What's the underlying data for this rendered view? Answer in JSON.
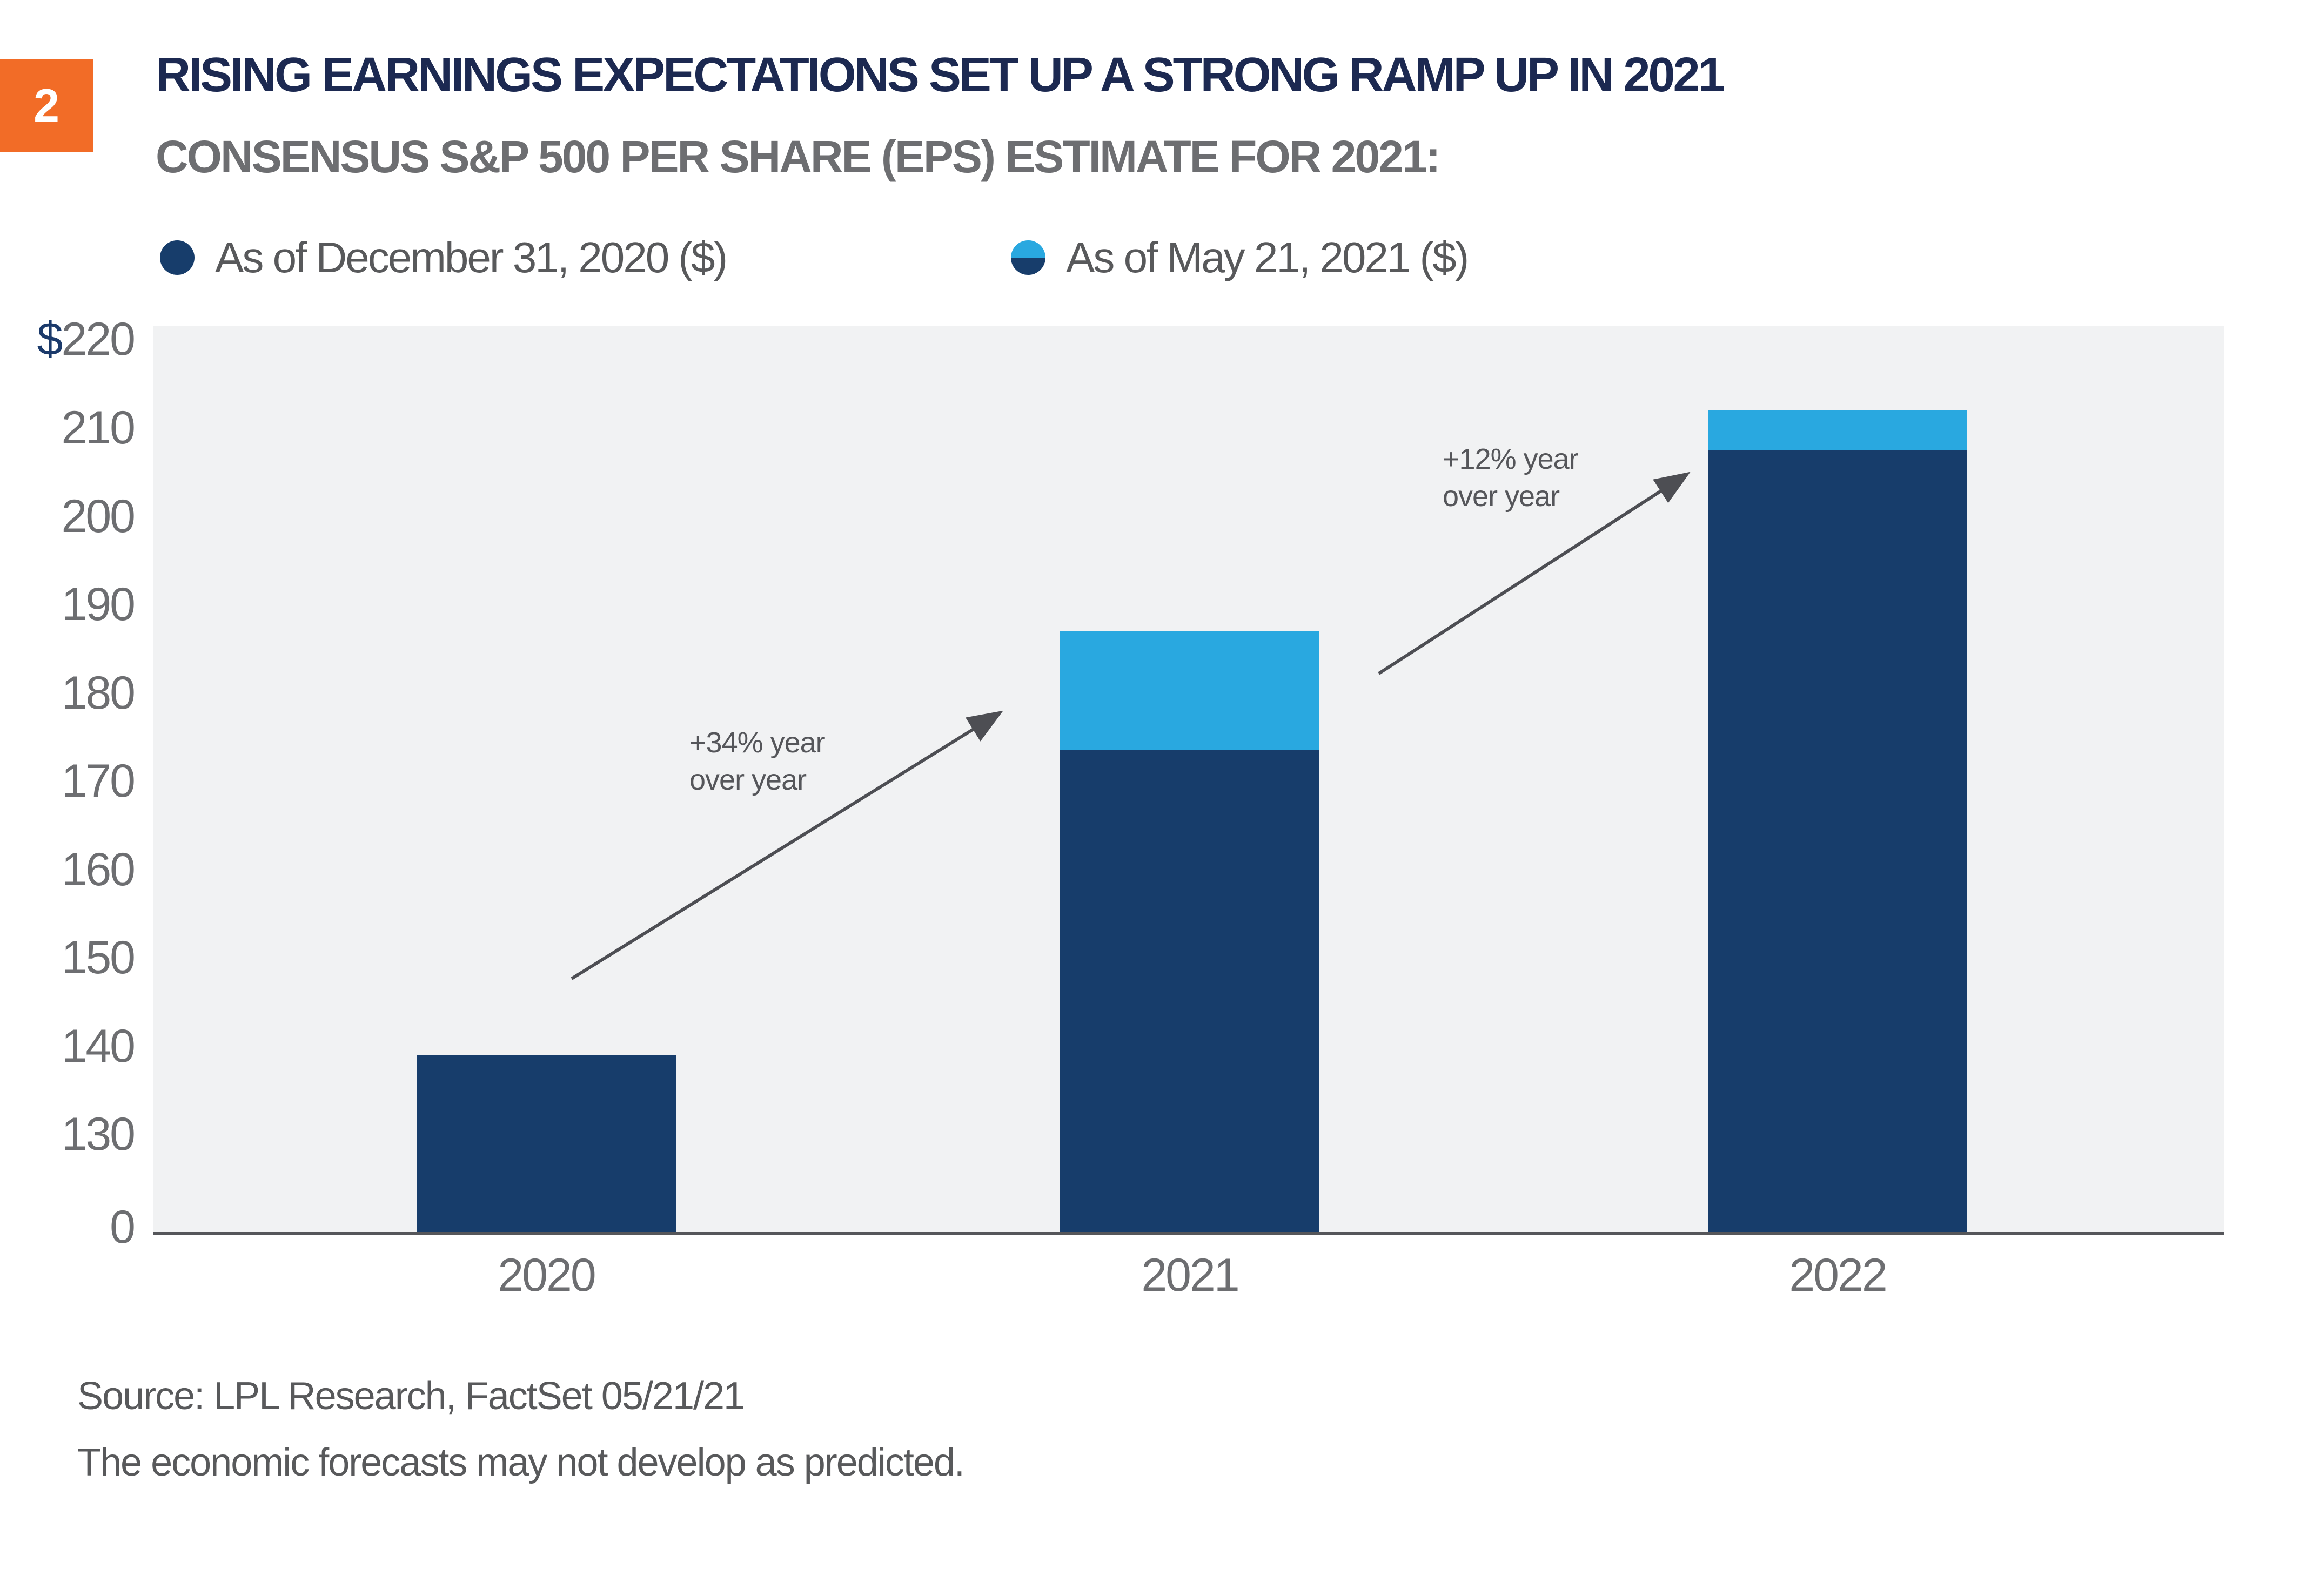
{
  "figure_badge": {
    "number": "2"
  },
  "header": {
    "title": "RISING EARNINGS EXPECTATIONS SET UP A STRONG RAMP UP IN 2021",
    "subtitle": "CONSENSUS S&P 500 PER SHARE (EPS) ESTIMATE FOR 2021:"
  },
  "legend": {
    "items": [
      {
        "label": "As of December 31, 2020 ($)",
        "marker": "solid-navy-dot"
      },
      {
        "label": "As of May 21, 2021 ($)",
        "marker": "half-lightblue-navy-dot"
      }
    ]
  },
  "chart_data": {
    "type": "bar",
    "stacked": true,
    "title": "CONSENSUS S&P 500 PER SHARE (EPS) ESTIMATE FOR 2021:",
    "categories": [
      "2020",
      "2021",
      "2022"
    ],
    "series": [
      {
        "name": "As of December 31, 2020 ($)",
        "color": "#173D6B",
        "values": [
          139,
          173.5,
          207.5
        ]
      },
      {
        "name": "As of May 21, 2021 ($)",
        "color": "#29A8E0",
        "values": [
          139,
          187,
          212
        ]
      }
    ],
    "series_note": "May 21, 2021 values are bar totals; the light-blue segment spans from the Dec 31, 2020 estimate up to the May 21, 2021 estimate.",
    "xlabel": "",
    "ylabel": "",
    "y_axis": {
      "ticks": [
        {
          "label": "220",
          "value": 220,
          "prefix": "$"
        },
        {
          "label": "210",
          "value": 210
        },
        {
          "label": "200",
          "value": 200
        },
        {
          "label": "190",
          "value": 190
        },
        {
          "label": "180",
          "value": 180
        },
        {
          "label": "170",
          "value": 170
        },
        {
          "label": "160",
          "value": 160
        },
        {
          "label": "150",
          "value": 150
        },
        {
          "label": "140",
          "value": 140
        },
        {
          "label": "130",
          "value": 130
        },
        {
          "label": "0",
          "value": 0
        }
      ],
      "broken_axis_below": 130,
      "range": [
        0,
        220
      ]
    },
    "grid": false,
    "legend_position": "top-left",
    "plot_background": "#F1F2F3"
  },
  "annotations": [
    {
      "lines": [
        "+34% year",
        "over year"
      ]
    },
    {
      "lines": [
        "+12% year",
        "over year"
      ]
    }
  ],
  "footer": {
    "source_line": "Source: LPL Research, FactSet  05/21/21",
    "disclaimer_line": "The economic forecasts may not develop as predicted."
  },
  "colors": {
    "navy_bar": "#173D6B",
    "light_blue_bar": "#29A8E0",
    "title_navy": "#1C2951",
    "mid_gray_text": "#6D6E71",
    "dark_gray_text": "#58595B",
    "axis_line": "#55565A",
    "arrow": "#4D4E53",
    "plot_background": "#F1F2F3",
    "badge_orange": "#F26C27",
    "badge_text": "#FFFFFF",
    "page_background": "#FFFFFF"
  }
}
